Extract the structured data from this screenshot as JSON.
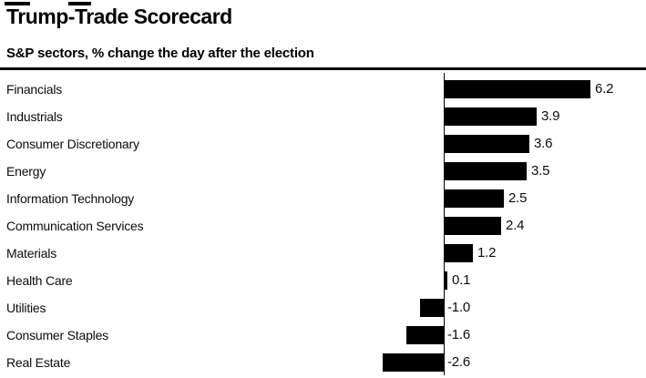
{
  "header": {
    "title": "Trump-Trade Scorecard",
    "subtitle": "S&P sectors, % change the day after the election"
  },
  "colors": {
    "background": "#ffffff",
    "bar": "#000000",
    "text": "#000000",
    "rule": "#000000"
  },
  "chart_data": {
    "type": "bar",
    "orientation": "horizontal",
    "title": "Trump-Trade Scorecard",
    "subtitle": "S&P sectors, % change the day after the election",
    "unit": "%",
    "categories": [
      "Financials",
      "Industrials",
      "Consumer Discretionary",
      "Energy",
      "Information Technology",
      "Communication Services",
      "Materials",
      "Health Care",
      "Utilities",
      "Consumer Staples",
      "Real Estate"
    ],
    "values": [
      6.2,
      3.9,
      3.6,
      3.5,
      2.5,
      2.4,
      1.2,
      0.1,
      -1.0,
      -1.6,
      -2.6
    ],
    "value_labels": [
      "6.2",
      "3.9",
      "3.6",
      "3.5",
      "2.5",
      "2.4",
      "1.2",
      "0.1",
      "-1.0",
      "-1.6",
      "-2.6"
    ],
    "xlim": [
      -2.6,
      6.2
    ],
    "grid": false,
    "legend": false,
    "value_labels_position": "end-of-bar",
    "zero_axis": true
  }
}
